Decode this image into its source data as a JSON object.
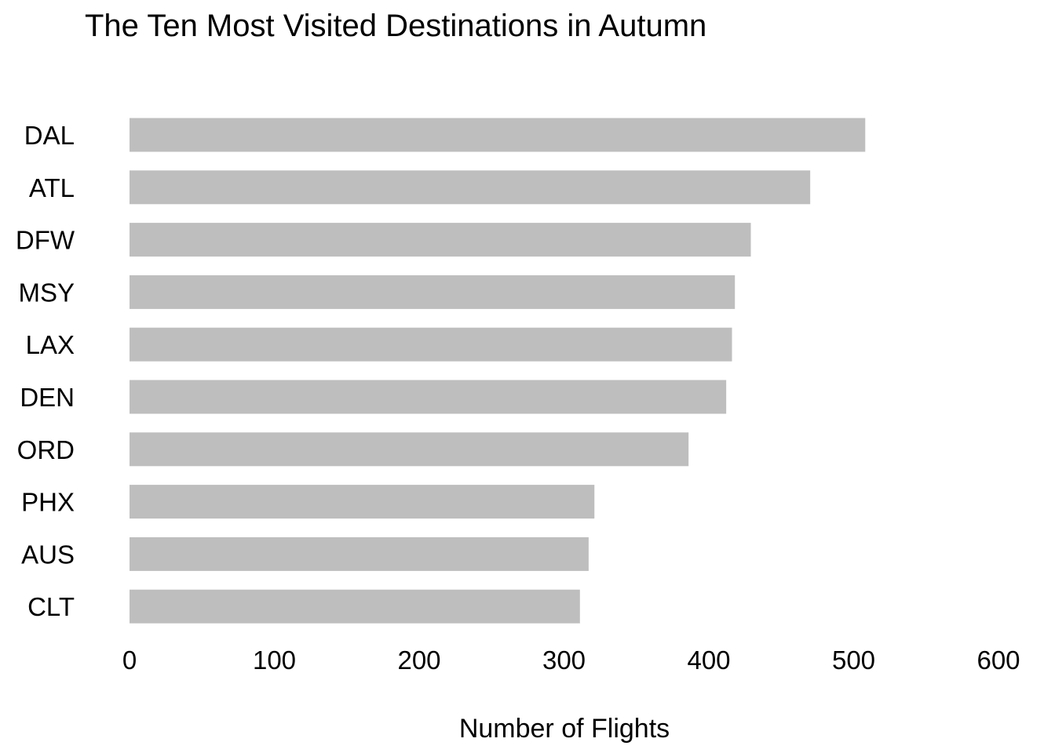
{
  "chart_data": {
    "type": "bar",
    "orientation": "horizontal",
    "title": "The Ten Most Visited Destinations in Autumn",
    "xlabel": "Number of Flights",
    "ylabel": "",
    "categories": [
      "DAL",
      "ATL",
      "DFW",
      "MSY",
      "LAX",
      "DEN",
      "ORD",
      "PHX",
      "AUS",
      "CLT"
    ],
    "values": [
      508,
      470,
      429,
      418,
      416,
      412,
      386,
      321,
      317,
      311
    ],
    "xlim": [
      0,
      600
    ],
    "xticks": [
      "0",
      "100",
      "200",
      "300",
      "400",
      "500",
      "600"
    ],
    "bar_color": "#bebebe",
    "grid": false,
    "legend": "none"
  }
}
